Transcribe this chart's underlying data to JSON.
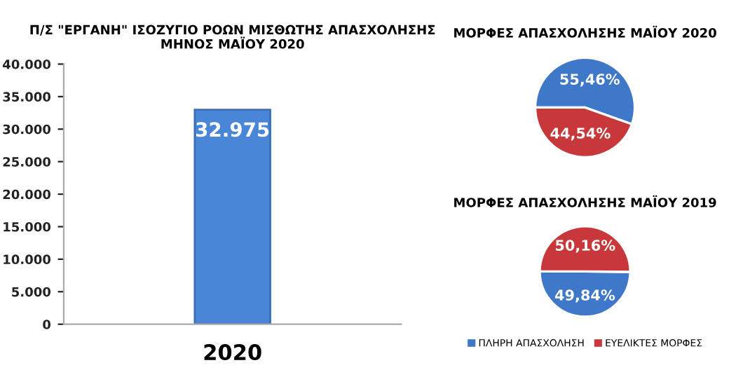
{
  "chart_data": [
    {
      "type": "bar",
      "title": "Π/Σ \"ΕΡΓΑΝΗ\" ΙΣΟΖΥΓΙΟ ΡΟΩΝ ΜΙΣΘΩΤΗΣ ΑΠΑΣΧΟΛΗΣΗΣ\nΜΗΝΟΣ ΜΑΪΟΥ 2020",
      "categories": [
        "2020"
      ],
      "values": [
        32975
      ],
      "value_labels": [
        "32.975"
      ],
      "color": "#4a86d8",
      "ylim": [
        0,
        40000
      ],
      "yticks": [
        0,
        {
          "value": 5000,
          "label": "5.000"
        },
        {
          "value": 10000,
          "label": "10.000"
        },
        {
          "value": 15000,
          "label": "15.000"
        },
        {
          "value": 20000,
          "label": "20.000"
        },
        {
          "value": 25000,
          "label": "25.000"
        },
        {
          "value": 30000,
          "label": "30.000"
        },
        {
          "value": 35000,
          "label": "35.000"
        },
        {
          "value": 40000,
          "label": "40.000"
        }
      ],
      "grid": false
    },
    {
      "type": "pie",
      "title": "ΜΟΡΦΕΣ ΑΠΑΣΧΟΛΗΣΗΣ ΜΑΪΟΥ 2020",
      "categories": [
        null,
        null
      ],
      "values": [
        55.46,
        44.54
      ],
      "value_labels": [
        "55,46%",
        "44,54%"
      ],
      "colors": [
        "#3f78c8",
        "#c8383a"
      ],
      "legend": false
    },
    {
      "type": "pie",
      "title": "ΜΟΡΦΕΣ ΑΠΑΣΧΟΛΗΣΗΣ ΜΑΪΟΥ 2019",
      "categories": [
        "ΠΛΗΡΗ ΑΠΑΣΧΟΛΗΣΗ",
        "ΕΥΕΛΙΚΤΕΣ ΜΟΡΦΕΣ"
      ],
      "values": [
        49.84,
        50.16
      ],
      "value_labels": [
        "49,84%",
        "50,16%"
      ],
      "colors": [
        "#3f78c8",
        "#c8383a"
      ],
      "legend": "bottom"
    }
  ]
}
